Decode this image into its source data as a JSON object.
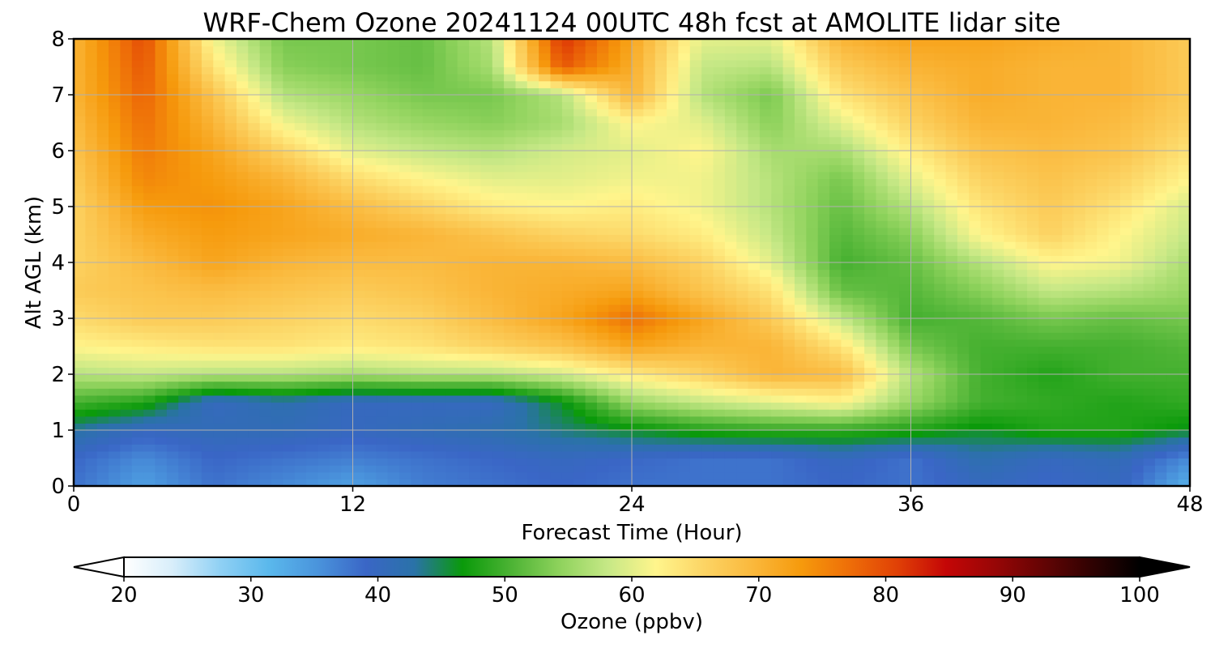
{
  "chart_data": {
    "type": "heatmap",
    "title": "WRF-Chem Ozone  20241124 00UTC 48h fcst at AMOLITE lidar site",
    "xlabel": "Forecast Time (Hour)",
    "ylabel": "Alt AGL (km)",
    "xlim": [
      0,
      48
    ],
    "ylim": [
      0,
      8
    ],
    "x_ticks": [
      "0",
      "12",
      "24",
      "36",
      "48"
    ],
    "y_ticks": [
      "0",
      "1",
      "2",
      "3",
      "4",
      "5",
      "6",
      "7",
      "8"
    ],
    "grid": true,
    "x": [
      0,
      3,
      6,
      9,
      12,
      15,
      18,
      21,
      24,
      27,
      30,
      33,
      36,
      39,
      42,
      45,
      48
    ],
    "y": [
      0,
      0.5,
      1,
      1.5,
      2,
      2.5,
      3,
      3.5,
      4,
      4.5,
      5,
      5.5,
      6,
      6.5,
      7,
      7.5,
      8
    ],
    "z": [
      [
        38,
        34,
        38,
        36,
        34,
        37,
        38,
        39,
        38,
        38,
        38,
        39,
        38,
        40,
        39,
        40,
        32
      ],
      [
        39,
        36,
        39,
        38,
        37,
        38,
        39,
        40,
        39,
        38,
        38,
        40,
        38,
        42,
        40,
        41,
        36
      ],
      [
        43,
        40,
        41,
        41,
        40,
        41,
        42,
        44,
        46,
        48,
        49,
        49,
        48,
        46,
        48,
        48,
        46
      ],
      [
        50,
        48,
        40,
        42,
        40,
        40,
        40,
        46,
        55,
        58,
        60,
        62,
        55,
        50,
        49,
        48,
        49
      ],
      [
        57,
        58,
        57,
        57,
        56,
        57,
        57,
        59,
        63,
        66,
        70,
        69,
        57,
        50,
        48,
        50,
        50
      ],
      [
        62,
        63,
        64,
        64,
        63,
        64,
        66,
        68,
        72,
        70,
        70,
        64,
        53,
        50,
        50,
        50,
        51
      ],
      [
        65,
        67,
        67,
        66,
        65,
        66,
        69,
        72,
        77,
        72,
        67,
        58,
        50,
        51,
        53,
        52,
        53
      ],
      [
        67,
        68,
        69,
        68,
        67,
        68,
        70,
        71,
        72,
        68,
        64,
        52,
        51,
        54,
        58,
        57,
        55
      ],
      [
        66,
        69,
        72,
        70,
        69,
        69,
        70,
        70,
        69,
        66,
        60,
        50,
        52,
        57,
        62,
        61,
        56
      ],
      [
        66,
        71,
        73,
        72,
        71,
        70,
        68,
        66,
        65,
        63,
        58,
        51,
        54,
        62,
        66,
        62,
        58
      ],
      [
        66,
        73,
        74,
        72,
        69,
        66,
        63,
        62,
        63,
        61,
        57,
        52,
        57,
        64,
        67,
        64,
        59
      ],
      [
        67,
        75,
        73,
        70,
        65,
        62,
        60,
        60,
        61,
        61,
        57,
        53,
        60,
        66,
        68,
        66,
        62
      ],
      [
        68,
        76,
        72,
        66,
        60,
        58,
        57,
        59,
        60,
        62,
        56,
        56,
        63,
        68,
        69,
        68,
        64
      ],
      [
        69,
        77,
        70,
        61,
        57,
        55,
        54,
        56,
        62,
        60,
        54,
        60,
        66,
        70,
        70,
        69,
        66
      ],
      [
        70,
        78,
        68,
        57,
        55,
        53,
        53,
        57,
        70,
        57,
        53,
        64,
        68,
        71,
        70,
        70,
        67
      ],
      [
        70,
        79,
        64,
        54,
        53,
        52,
        56,
        79,
        71,
        58,
        57,
        67,
        70,
        71,
        70,
        70,
        67
      ],
      [
        70,
        80,
        61,
        53,
        53,
        52,
        57,
        82,
        72,
        60,
        60,
        70,
        72,
        72,
        71,
        70,
        67
      ]
    ],
    "colorbar": {
      "label": "Ozone  (ppbv)",
      "range": [
        20,
        100
      ],
      "ticks": [
        "20",
        "30",
        "40",
        "50",
        "60",
        "70",
        "80",
        "90",
        "100"
      ],
      "extend": "both",
      "colors": [
        "#ffffff",
        "#d8eefa",
        "#8fd0f4",
        "#5ab8ec",
        "#4a94dc",
        "#3a66c6",
        "#2a72a8",
        "#0a9a0a",
        "#4cb334",
        "#8ed25c",
        "#c6e886",
        "#fff58c",
        "#fcd464",
        "#fab83c",
        "#f69a0c",
        "#ee6e08",
        "#e04006",
        "#c40606",
        "#980606",
        "#640404",
        "#300202",
        "#000000"
      ]
    }
  }
}
